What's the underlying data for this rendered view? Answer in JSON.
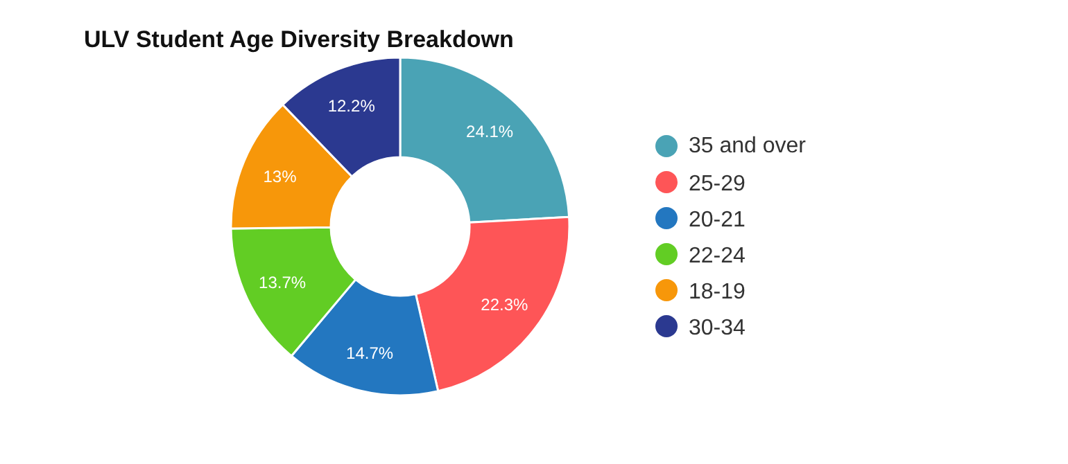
{
  "chart_data": {
    "type": "donut",
    "title": "ULV Student Age Diversity Breakdown",
    "categories": [
      "35 and over",
      "25-29",
      "20-21",
      "22-24",
      "18-19",
      "30-34"
    ],
    "values": [
      24.1,
      22.3,
      14.7,
      13.7,
      13,
      12.2
    ],
    "value_labels": [
      "24.1%",
      "22.3%",
      "14.7%",
      "13.7%",
      "13%",
      "12.2%"
    ],
    "colors": [
      "#4aa3b5",
      "#fe5557",
      "#2377c0",
      "#62cd24",
      "#f7970a",
      "#2b3990"
    ],
    "legend": "right"
  }
}
